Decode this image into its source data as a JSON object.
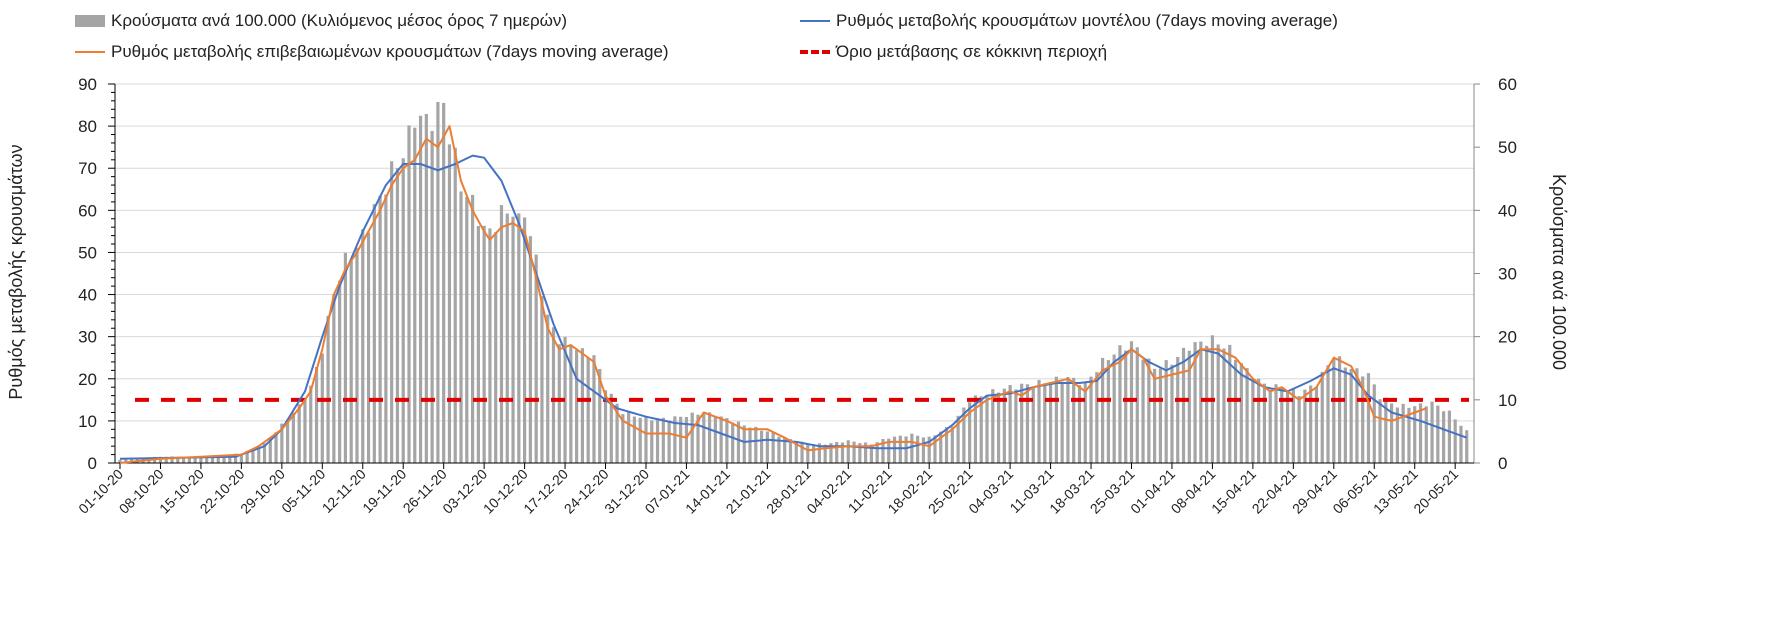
{
  "chart_data": {
    "type": "bar+line",
    "legend": {
      "bars": "Κρούσματα ανά 100.000 (Κυλιόμενος μέσος όρος 7 ημερών)",
      "model": "Ρυθμός μεταβολής κρουσμάτων μοντέλου (7days moving average)",
      "confirmed": "Ρυθμός μεταβολής επιβεβαιωμένων κρουσμάτων (7days moving average)",
      "threshold": "Όριο μετάβασης σε κόκκινη περιοχή"
    },
    "legend_placement": "top",
    "ylabel_left": "Ρυθμός μεταβολής κρουσμάτων",
    "ylabel_right": "Κρούσματα ανά 100.000",
    "ylim_left": [
      0,
      90
    ],
    "ylim_right": [
      0,
      60
    ],
    "left_ticks": [
      "0",
      "10",
      "20",
      "30",
      "40",
      "50",
      "60",
      "70",
      "80",
      "90"
    ],
    "right_ticks": [
      "0",
      "10",
      "20",
      "30",
      "40",
      "50",
      "60"
    ],
    "x_unit": "days since 01-10-20",
    "x_ticks": [
      "01-10-20",
      "08-10-20",
      "15-10-20",
      "22-10-20",
      "29-10-20",
      "05-11-20",
      "12-11-20",
      "19-11-20",
      "26-11-20",
      "03-12-20",
      "10-12-20",
      "17-12-20",
      "24-12-20",
      "31-12-20",
      "07-01-21",
      "14-01-21",
      "21-01-21",
      "28-01-21",
      "04-02-21",
      "11-02-21",
      "18-02-21",
      "25-02-21",
      "04-03-21",
      "11-03-21",
      "18-03-21",
      "25-03-21",
      "01-04-21",
      "08-04-21",
      "15-04-21",
      "22-04-21",
      "29-04-21",
      "06-05-21",
      "13-05-21",
      "20-05-21"
    ],
    "threshold_left": 15,
    "colors": {
      "bars": "#a5a5a5",
      "model": "#4472c4",
      "confirmed": "#ed7d31",
      "threshold": "#e00000"
    },
    "bars_right_axis": [
      [
        0,
        0.5
      ],
      [
        7,
        1
      ],
      [
        14,
        1
      ],
      [
        21,
        1.5
      ],
      [
        25,
        3
      ],
      [
        28,
        6
      ],
      [
        31,
        9
      ],
      [
        33,
        12
      ],
      [
        35,
        18
      ],
      [
        37,
        27
      ],
      [
        39,
        32
      ],
      [
        41,
        34
      ],
      [
        43,
        38
      ],
      [
        45,
        42
      ],
      [
        47,
        46
      ],
      [
        49,
        49
      ],
      [
        50,
        51.5
      ],
      [
        51,
        55
      ],
      [
        53,
        54
      ],
      [
        55,
        55.5
      ],
      [
        56,
        57
      ],
      [
        57,
        52
      ],
      [
        59,
        44
      ],
      [
        61,
        41
      ],
      [
        63,
        37
      ],
      [
        64,
        36.5
      ],
      [
        66,
        39.5
      ],
      [
        68,
        40
      ],
      [
        69,
        38
      ],
      [
        70,
        40
      ],
      [
        72,
        32
      ],
      [
        74,
        23
      ],
      [
        76,
        19.5
      ],
      [
        78,
        19
      ],
      [
        80,
        17.5
      ],
      [
        82,
        17
      ],
      [
        84,
        12
      ],
      [
        87,
        8
      ],
      [
        91,
        7
      ],
      [
        95,
        7
      ],
      [
        98,
        7.5
      ],
      [
        101,
        8
      ],
      [
        105,
        7
      ],
      [
        108,
        6
      ],
      [
        112,
        5
      ],
      [
        115,
        4
      ],
      [
        119,
        3
      ],
      [
        122,
        3
      ],
      [
        126,
        3.5
      ],
      [
        130,
        3
      ],
      [
        133,
        4
      ],
      [
        137,
        4.5
      ],
      [
        140,
        4
      ],
      [
        144,
        6
      ],
      [
        147,
        10
      ],
      [
        150,
        11
      ],
      [
        154,
        12
      ],
      [
        158,
        12.5
      ],
      [
        161,
        13
      ],
      [
        164,
        13.5
      ],
      [
        167,
        12.5
      ],
      [
        170,
        16
      ],
      [
        173,
        18
      ],
      [
        175,
        19
      ],
      [
        177,
        17
      ],
      [
        179,
        15
      ],
      [
        182,
        16
      ],
      [
        185,
        18.5
      ],
      [
        187,
        19
      ],
      [
        189,
        19.5
      ],
      [
        192,
        18
      ],
      [
        196,
        13.5
      ],
      [
        199,
        12
      ],
      [
        201,
        12
      ],
      [
        204,
        11
      ],
      [
        207,
        12.5
      ],
      [
        210,
        17
      ],
      [
        212,
        15.5
      ],
      [
        214,
        14.5
      ],
      [
        216,
        14
      ],
      [
        218,
        10.5
      ],
      [
        221,
        9
      ],
      [
        224,
        9
      ],
      [
        227,
        9.5
      ],
      [
        230,
        8
      ],
      [
        233,
        5
      ]
    ],
    "confirmed_left_axis": [
      [
        0,
        0
      ],
      [
        7,
        1
      ],
      [
        14,
        1.5
      ],
      [
        21,
        2
      ],
      [
        24,
        4
      ],
      [
        28,
        8
      ],
      [
        31,
        13
      ],
      [
        33,
        17
      ],
      [
        35,
        27
      ],
      [
        37,
        40
      ],
      [
        39,
        46
      ],
      [
        41,
        50
      ],
      [
        43,
        55
      ],
      [
        45,
        60
      ],
      [
        47,
        66
      ],
      [
        49,
        70
      ],
      [
        51,
        72
      ],
      [
        53,
        77
      ],
      [
        55,
        75
      ],
      [
        57,
        80
      ],
      [
        59,
        67
      ],
      [
        61,
        60
      ],
      [
        63,
        55
      ],
      [
        64,
        53
      ],
      [
        66,
        56
      ],
      [
        68,
        57
      ],
      [
        70,
        55
      ],
      [
        72,
        44
      ],
      [
        74,
        32
      ],
      [
        76,
        27
      ],
      [
        78,
        28
      ],
      [
        80,
        26
      ],
      [
        82,
        24
      ],
      [
        84,
        16
      ],
      [
        87,
        10
      ],
      [
        91,
        7
      ],
      [
        95,
        7
      ],
      [
        98,
        6
      ],
      [
        101,
        12
      ],
      [
        105,
        10
      ],
      [
        108,
        8
      ],
      [
        112,
        8
      ],
      [
        115,
        6
      ],
      [
        119,
        3
      ],
      [
        122,
        3.5
      ],
      [
        126,
        4
      ],
      [
        130,
        4
      ],
      [
        133,
        5
      ],
      [
        137,
        5
      ],
      [
        140,
        4
      ],
      [
        144,
        8
      ],
      [
        147,
        12
      ],
      [
        150,
        15
      ],
      [
        154,
        17
      ],
      [
        156,
        16
      ],
      [
        158,
        18
      ],
      [
        161,
        19
      ],
      [
        164,
        20
      ],
      [
        167,
        17
      ],
      [
        170,
        22
      ],
      [
        173,
        24
      ],
      [
        175,
        27
      ],
      [
        177,
        25
      ],
      [
        179,
        20
      ],
      [
        182,
        21
      ],
      [
        185,
        22
      ],
      [
        187,
        27
      ],
      [
        190,
        27
      ],
      [
        193,
        25
      ],
      [
        196,
        20
      ],
      [
        199,
        17
      ],
      [
        201,
        18
      ],
      [
        204,
        15
      ],
      [
        207,
        18
      ],
      [
        210,
        25
      ],
      [
        213,
        23
      ],
      [
        215,
        18
      ],
      [
        217,
        11
      ],
      [
        220,
        10
      ],
      [
        224,
        12
      ],
      [
        226,
        13
      ]
    ],
    "model_left_axis": [
      [
        0,
        1
      ],
      [
        20,
        1.5
      ],
      [
        25,
        4
      ],
      [
        28,
        8
      ],
      [
        32,
        17
      ],
      [
        35,
        30
      ],
      [
        38,
        42
      ],
      [
        42,
        55
      ],
      [
        46,
        66
      ],
      [
        49,
        71
      ],
      [
        52,
        71
      ],
      [
        55,
        69.5
      ],
      [
        58,
        71
      ],
      [
        61,
        73
      ],
      [
        63,
        72.5
      ],
      [
        66,
        67
      ],
      [
        69,
        57
      ],
      [
        72,
        45
      ],
      [
        75,
        33
      ],
      [
        79,
        20
      ],
      [
        83,
        16
      ],
      [
        86,
        13
      ],
      [
        91,
        11
      ],
      [
        96,
        9.5
      ],
      [
        100,
        9
      ],
      [
        104,
        7
      ],
      [
        108,
        5
      ],
      [
        112,
        5.5
      ],
      [
        117,
        5
      ],
      [
        121,
        4
      ],
      [
        126,
        4
      ],
      [
        131,
        3.5
      ],
      [
        136,
        3.5
      ],
      [
        140,
        5
      ],
      [
        144,
        9
      ],
      [
        147,
        13
      ],
      [
        150,
        16
      ],
      [
        154,
        16.5
      ],
      [
        158,
        18
      ],
      [
        162,
        19
      ],
      [
        166,
        19
      ],
      [
        169,
        19.5
      ],
      [
        172,
        24
      ],
      [
        175,
        27
      ],
      [
        178,
        24
      ],
      [
        181,
        22
      ],
      [
        184,
        24
      ],
      [
        187,
        27
      ],
      [
        190,
        26
      ],
      [
        194,
        21
      ],
      [
        198,
        18
      ],
      [
        202,
        17
      ],
      [
        206,
        19.5
      ],
      [
        210,
        22.5
      ],
      [
        213,
        21
      ],
      [
        216,
        16
      ],
      [
        220,
        12
      ],
      [
        225,
        10
      ],
      [
        230,
        7.5
      ],
      [
        233,
        6
      ]
    ]
  }
}
